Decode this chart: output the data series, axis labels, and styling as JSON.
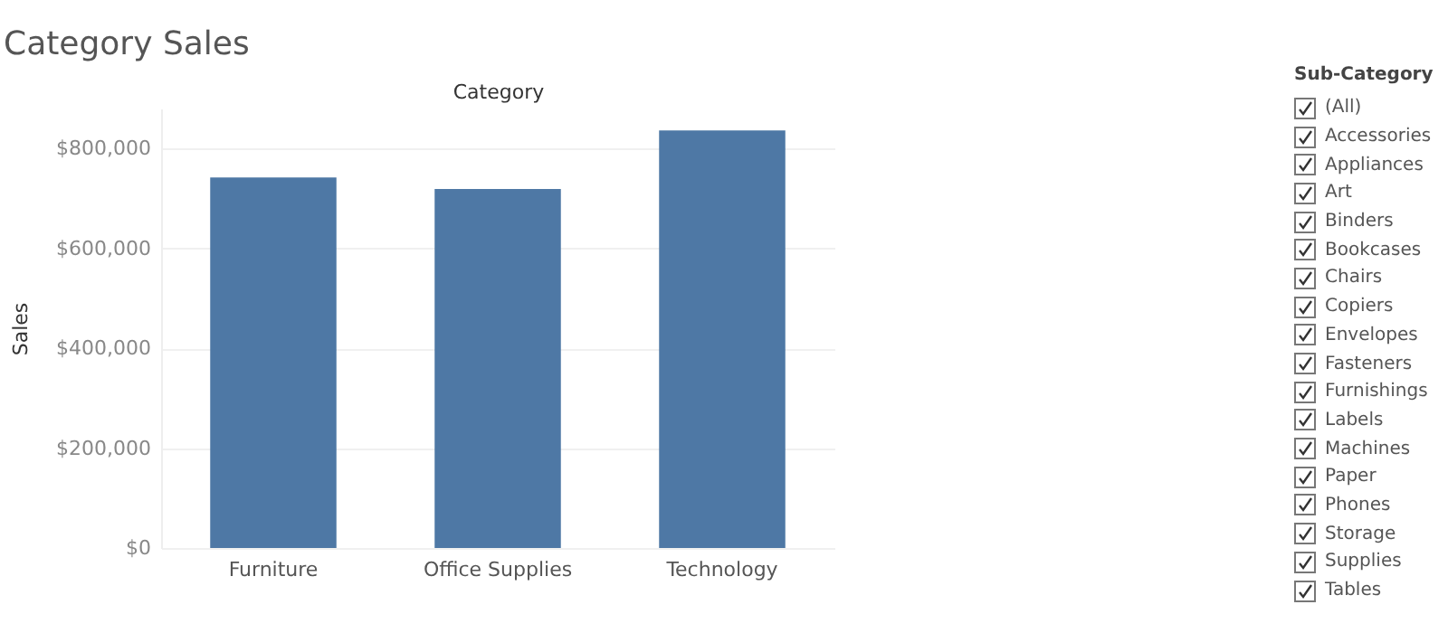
{
  "chart_data": {
    "type": "bar",
    "title": "Category Sales",
    "xlabel": "Category",
    "ylabel": "Sales",
    "categories": [
      "Furniture",
      "Office Supplies",
      "Technology"
    ],
    "values": [
      742000,
      719000,
      836000
    ],
    "color": "#4e78a5",
    "ylim": [
      0,
      880000
    ],
    "yticks": [
      {
        "value": 0,
        "label": "$0"
      },
      {
        "value": 200000,
        "label": "$200,000"
      },
      {
        "value": 400000,
        "label": "$400,000"
      },
      {
        "value": 600000,
        "label": "$600,000"
      },
      {
        "value": 800000,
        "label": "$800,000"
      }
    ],
    "grid": "y",
    "annotations": [
      "Sub-Category",
      "(All)",
      "Accessories",
      "Appliances",
      "Art",
      "Binders",
      "Bookcases",
      "Chairs",
      "Copiers",
      "Envelopes",
      "Fasteners",
      "Furnishings",
      "Labels",
      "Machines",
      "Paper",
      "Phones",
      "Storage",
      "Supplies",
      "Tables"
    ]
  }
}
